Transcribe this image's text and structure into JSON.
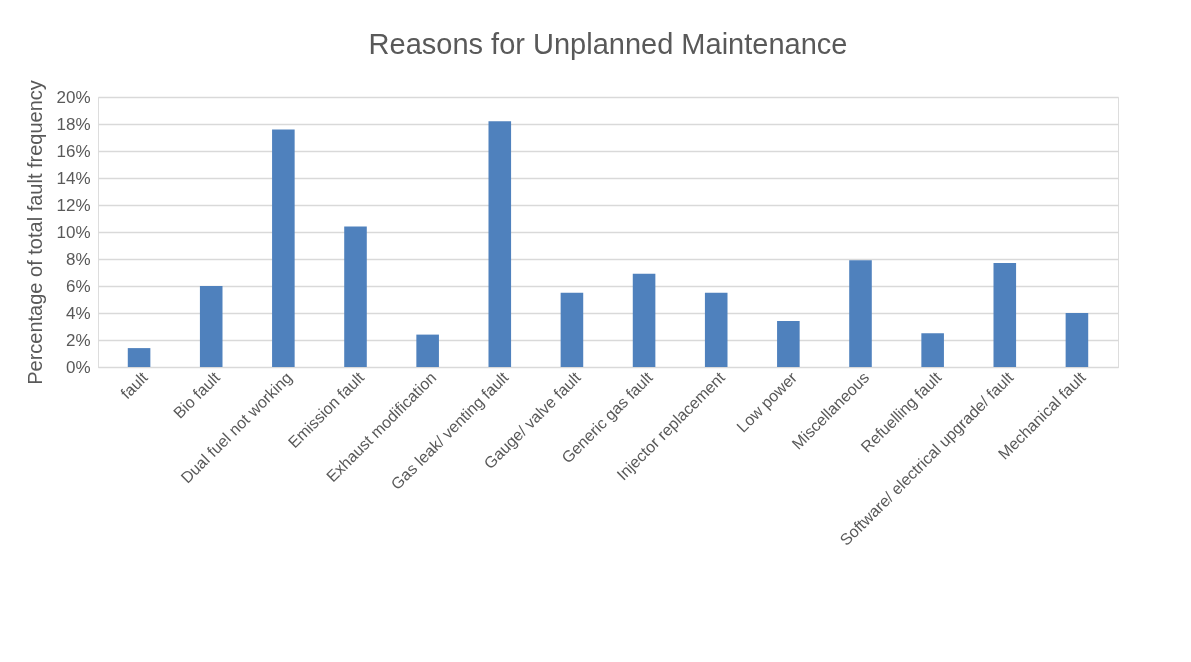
{
  "chart_data": {
    "type": "bar",
    "title": "Reasons for Unplanned Maintenance",
    "ylabel": "Percentage of total fault frequency",
    "categories": [
      "fault",
      "Bio fault",
      "Dual fuel not working",
      "Emission fault",
      "Exhaust modification",
      "Gas leak/ venting fault",
      "Gauge/ valve fault",
      "Generic gas fault",
      "Injector replacement",
      "Low power",
      "Miscellaneous",
      "Refuelling fault",
      "Software/ electrical upgrade/ fault",
      "Mechanical fault"
    ],
    "values": [
      1.4,
      6.0,
      17.6,
      10.4,
      2.4,
      18.2,
      5.5,
      6.9,
      5.5,
      3.4,
      7.9,
      2.5,
      7.7,
      4.0
    ],
    "color": "#4f81bd",
    "ylim": [
      0,
      20
    ],
    "yticks": [
      {
        "value": 0,
        "label": "0%"
      },
      {
        "value": 2,
        "label": "2%"
      },
      {
        "value": 4,
        "label": "4%"
      },
      {
        "value": 6,
        "label": "6%"
      },
      {
        "value": 8,
        "label": "8%"
      },
      {
        "value": 10,
        "label": "10%"
      },
      {
        "value": 12,
        "label": "12%"
      },
      {
        "value": 14,
        "label": "14%"
      },
      {
        "value": 16,
        "label": "16%"
      },
      {
        "value": 18,
        "label": "18%"
      },
      {
        "value": 20,
        "label": "20%"
      }
    ],
    "grid": "y"
  }
}
